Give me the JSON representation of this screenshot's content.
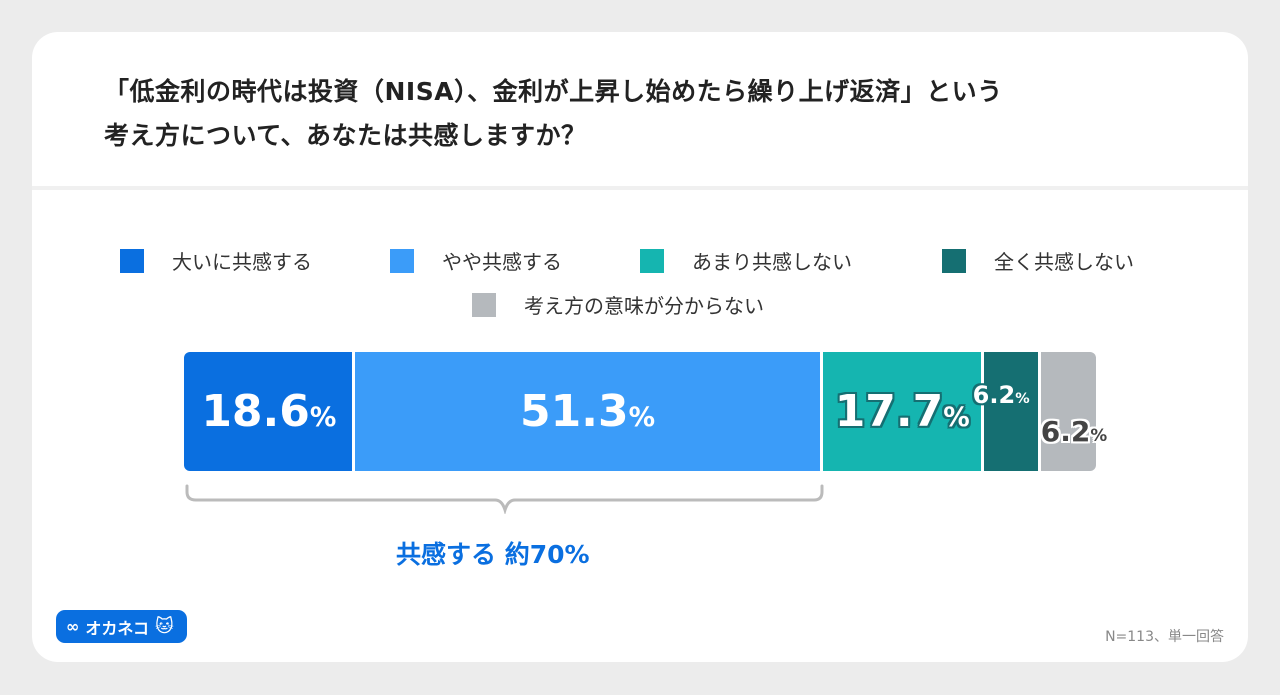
{
  "title_lines": [
    "「低金利の時代は投資（NISA）、金利が上昇し始めたら繰り上げ返済」という",
    "考え方について、あなたは共感しますか？"
  ],
  "chart_data": {
    "type": "bar",
    "orientation": "horizontal-stacked-100",
    "categories": [
      "大いに共感する",
      "やや共感する",
      "あまり共感しない",
      "全く共感しない",
      "考え方の意味が分からない"
    ],
    "values": [
      18.6,
      51.3,
      17.7,
      6.2,
      6.2
    ],
    "value_labels": [
      "18.6",
      "51.3",
      "17.7",
      "6.2",
      "6.2"
    ],
    "unit": "%",
    "colors": [
      "#0a6fe0",
      "#3b9cf9",
      "#15b5b0",
      "#156f72",
      "#b5b9bd"
    ],
    "legend": "top",
    "annotation": "共感する 約70%"
  },
  "logo_text": "オカネコ",
  "note": "N=113、単一回答"
}
